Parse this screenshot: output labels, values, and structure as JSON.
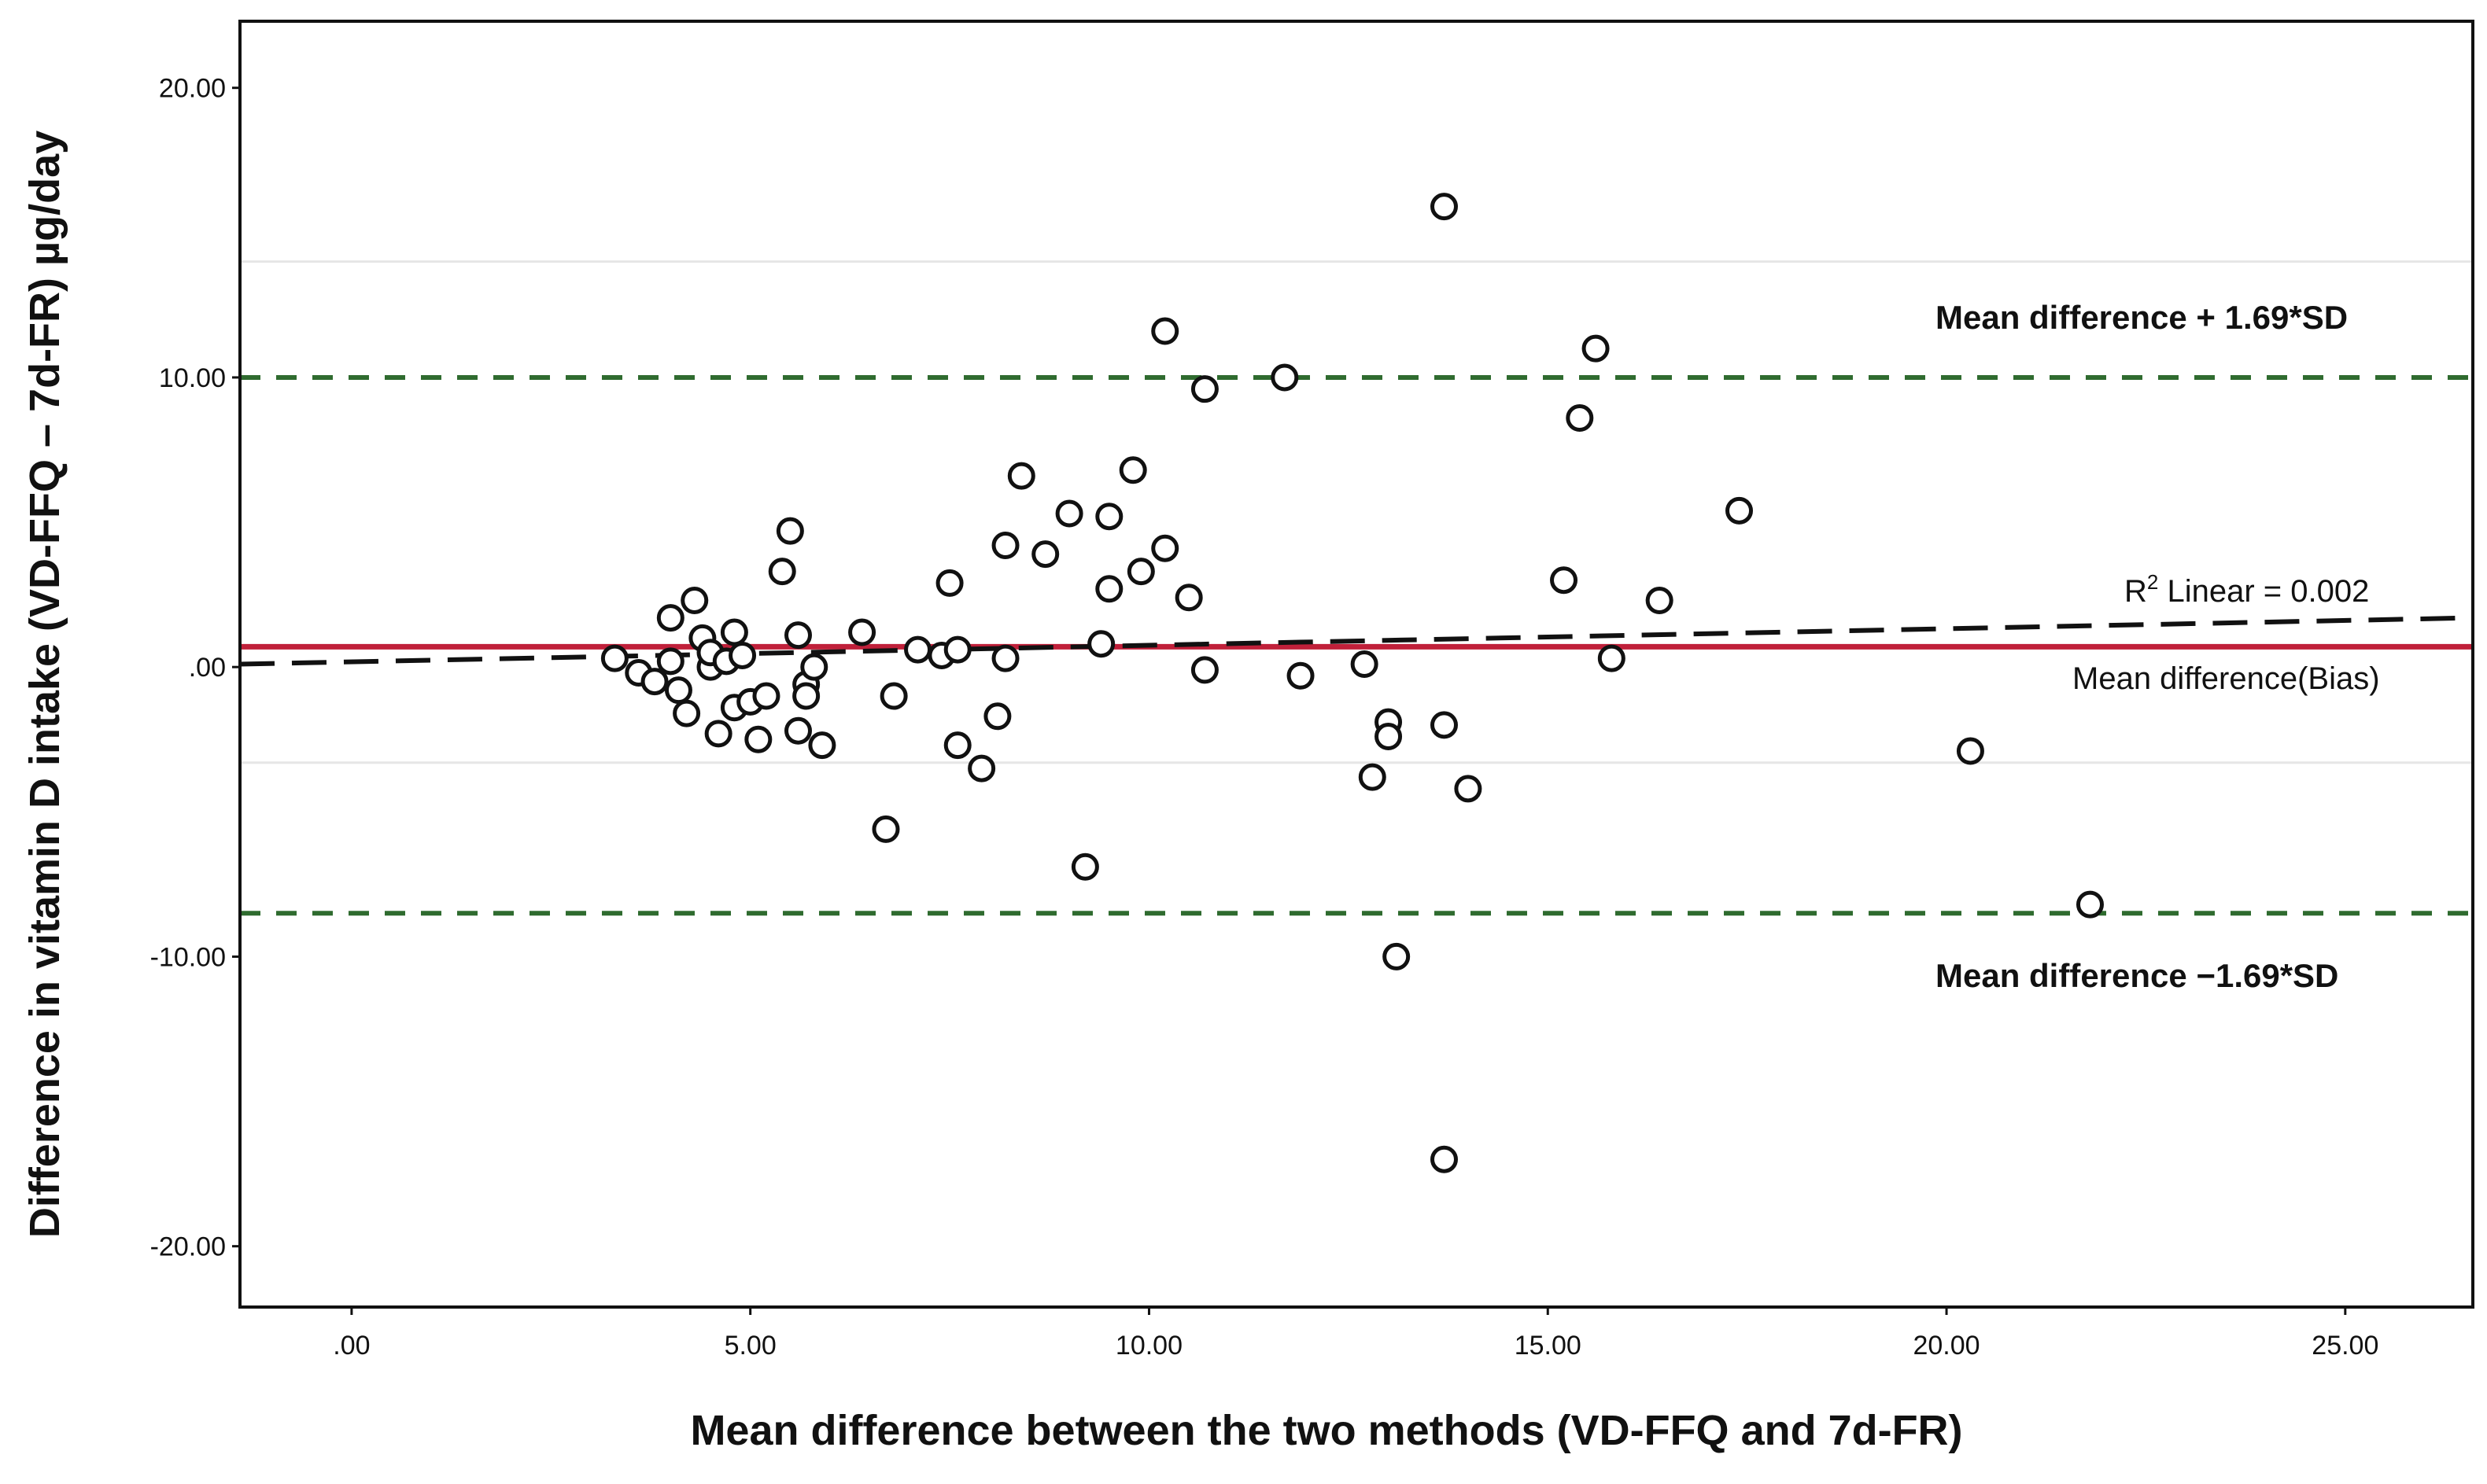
{
  "chart_data": {
    "type": "scatter",
    "title": "",
    "xlabel": "Mean difference between the two methods (VD-FFQ and 7d-FR)",
    "ylabel": "Difference in vitamin D intake (VD-FFQ – 7d-FR) µg/day",
    "xlim": [
      -1.4,
      26.6
    ],
    "ylim": [
      -22.1,
      22.3
    ],
    "x_ticks": [
      0,
      5,
      10,
      15,
      20,
      25
    ],
    "x_tick_labels": [
      ".00",
      "5.00",
      "10.00",
      "15.00",
      "20.00",
      "25.00"
    ],
    "y_ticks": [
      20,
      10,
      0,
      -10,
      -20
    ],
    "y_tick_labels": [
      "20.00",
      "10.00",
      ".00",
      "-10.00",
      "-20.00"
    ],
    "mean_difference": 0.7,
    "upper_limit": 10.0,
    "lower_limit": -8.5,
    "fit_line": {
      "x": [
        -1.4,
        26.6
      ],
      "y": [
        0.1,
        1.7
      ]
    },
    "faint_gridlines": [
      14.0,
      -3.3
    ],
    "annotations": {
      "upper": "Mean difference + 1.69*SD",
      "lower": "Mean difference −1.69*SD",
      "bias": "Mean difference(Bias)",
      "r2_prefix": "R",
      "r2_sup": "2",
      "r2_suffix": " Linear = 0.002"
    },
    "colors": {
      "limit_line": "#2f6b2f",
      "bias_line": "#c0203a",
      "fit_line": "#111111",
      "points": "#111111"
    },
    "points": [
      {
        "x": 3.3,
        "y": 0.3
      },
      {
        "x": 3.6,
        "y": -0.2
      },
      {
        "x": 3.8,
        "y": -0.5
      },
      {
        "x": 4.0,
        "y": 1.7
      },
      {
        "x": 4.0,
        "y": 0.2
      },
      {
        "x": 4.1,
        "y": -0.8
      },
      {
        "x": 4.2,
        "y": -1.6
      },
      {
        "x": 4.3,
        "y": 2.3
      },
      {
        "x": 4.4,
        "y": 1.0
      },
      {
        "x": 4.5,
        "y": 0.0
      },
      {
        "x": 4.5,
        "y": 0.5
      },
      {
        "x": 4.6,
        "y": -2.3
      },
      {
        "x": 4.7,
        "y": 0.2
      },
      {
        "x": 4.8,
        "y": 1.2
      },
      {
        "x": 4.8,
        "y": -1.4
      },
      {
        "x": 4.9,
        "y": 0.4
      },
      {
        "x": 5.0,
        "y": -1.2
      },
      {
        "x": 5.1,
        "y": -2.5
      },
      {
        "x": 5.2,
        "y": -1.0
      },
      {
        "x": 5.4,
        "y": 3.3
      },
      {
        "x": 5.5,
        "y": 4.7
      },
      {
        "x": 5.6,
        "y": 1.1
      },
      {
        "x": 5.6,
        "y": -2.2
      },
      {
        "x": 5.7,
        "y": -0.6
      },
      {
        "x": 5.7,
        "y": -1.0
      },
      {
        "x": 5.8,
        "y": 0.0
      },
      {
        "x": 5.9,
        "y": -2.7
      },
      {
        "x": 6.4,
        "y": 1.2
      },
      {
        "x": 6.7,
        "y": -5.6
      },
      {
        "x": 6.8,
        "y": -1.0
      },
      {
        "x": 7.1,
        "y": 0.6
      },
      {
        "x": 7.4,
        "y": 0.4
      },
      {
        "x": 7.5,
        "y": 2.9
      },
      {
        "x": 7.6,
        "y": -2.7
      },
      {
        "x": 7.6,
        "y": 0.6
      },
      {
        "x": 7.9,
        "y": -3.5
      },
      {
        "x": 8.1,
        "y": -1.7
      },
      {
        "x": 8.2,
        "y": 4.2
      },
      {
        "x": 8.2,
        "y": 0.3
      },
      {
        "x": 8.4,
        "y": 6.6
      },
      {
        "x": 8.7,
        "y": 3.9
      },
      {
        "x": 9.0,
        "y": 5.3
      },
      {
        "x": 9.2,
        "y": -6.9
      },
      {
        "x": 9.4,
        "y": 0.8
      },
      {
        "x": 9.5,
        "y": 5.2
      },
      {
        "x": 9.5,
        "y": 2.7
      },
      {
        "x": 9.8,
        "y": 6.8
      },
      {
        "x": 9.9,
        "y": 3.3
      },
      {
        "x": 10.2,
        "y": 4.1
      },
      {
        "x": 10.2,
        "y": 11.6
      },
      {
        "x": 10.5,
        "y": 2.4
      },
      {
        "x": 10.7,
        "y": 9.6
      },
      {
        "x": 10.7,
        "y": -0.1
      },
      {
        "x": 11.7,
        "y": 10.0
      },
      {
        "x": 11.9,
        "y": -0.3
      },
      {
        "x": 12.7,
        "y": 0.1
      },
      {
        "x": 12.8,
        "y": -3.8
      },
      {
        "x": 13.0,
        "y": -1.9
      },
      {
        "x": 13.0,
        "y": -2.4
      },
      {
        "x": 13.1,
        "y": -10.0
      },
      {
        "x": 13.7,
        "y": 15.9
      },
      {
        "x": 13.7,
        "y": -17.0
      },
      {
        "x": 13.7,
        "y": -2.0
      },
      {
        "x": 14.0,
        "y": -4.2
      },
      {
        "x": 15.2,
        "y": 3.0
      },
      {
        "x": 15.4,
        "y": 8.6
      },
      {
        "x": 15.6,
        "y": 11.0
      },
      {
        "x": 15.8,
        "y": 0.3
      },
      {
        "x": 16.4,
        "y": 2.3
      },
      {
        "x": 17.4,
        "y": 5.4
      },
      {
        "x": 20.3,
        "y": -2.9
      },
      {
        "x": 21.8,
        "y": -8.2
      }
    ]
  }
}
